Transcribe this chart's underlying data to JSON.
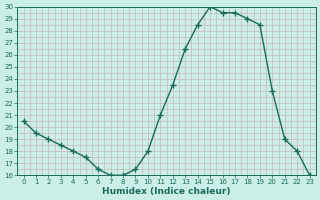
{
  "x": [
    0,
    1,
    2,
    3,
    4,
    5,
    6,
    7,
    8,
    9,
    10,
    11,
    12,
    13,
    14,
    15,
    16,
    17,
    18,
    19,
    20,
    21,
    22,
    23
  ],
  "y": [
    20.5,
    19.5,
    19.0,
    18.5,
    18.0,
    17.5,
    16.5,
    16.0,
    16.0,
    16.5,
    18.0,
    21.0,
    23.5,
    26.5,
    28.5,
    30.0,
    29.5,
    29.5,
    29.0,
    28.5,
    23.0,
    19.0,
    18.0,
    16.0
  ],
  "line_color": "#1a6b5a",
  "marker": "+",
  "marker_size": 4,
  "bg_color": "#cceee8",
  "grid_color": "#c8b8b8",
  "axis_color": "#1a6b5a",
  "tick_color": "#1a6b5a",
  "xlabel": "Humidex (Indice chaleur)",
  "xlim": [
    -0.5,
    23.5
  ],
  "ylim": [
    16,
    30
  ],
  "yticks": [
    16,
    17,
    18,
    19,
    20,
    21,
    22,
    23,
    24,
    25,
    26,
    27,
    28,
    29,
    30
  ],
  "xticks": [
    0,
    1,
    2,
    3,
    4,
    5,
    6,
    7,
    8,
    9,
    10,
    11,
    12,
    13,
    14,
    15,
    16,
    17,
    18,
    19,
    20,
    21,
    22,
    23
  ],
  "xlabel_fontsize": 6.5,
  "tick_fontsize": 5.0,
  "linewidth": 1.0
}
